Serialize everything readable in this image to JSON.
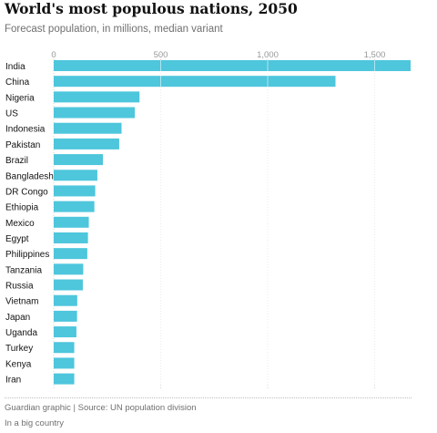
{
  "title": "World's most populous nations, 2050",
  "subtitle": "Forecast population, in millions, median variant",
  "source": "Guardian graphic | Source: UN population division",
  "note": "In a big country",
  "colors": {
    "bar": "#4ec6dc",
    "text": "#121212",
    "muted": "#707070",
    "grid": "#d6d6d6",
    "tick": "#9a9a9a"
  },
  "chart_data": {
    "type": "bar",
    "orientation": "horizontal",
    "categories": [
      "India",
      "China",
      "Nigeria",
      "US",
      "Indonesia",
      "Pakistan",
      "Brazil",
      "Bangladesh",
      "DR Congo",
      "Ethiopia",
      "Mexico",
      "Egypt",
      "Philippines",
      "Tanzania",
      "Russia",
      "Vietnam",
      "Japan",
      "Uganda",
      "Turkey",
      "Kenya",
      "Iran"
    ],
    "values": [
      1668,
      1317,
      401,
      379,
      317,
      306,
      230,
      204,
      194,
      190,
      164,
      160,
      157,
      138,
      136,
      110,
      109,
      106,
      96,
      96,
      96
    ],
    "xticks": [
      0,
      500,
      1000,
      1500
    ],
    "xtick_labels": [
      "0",
      "500",
      "1,000",
      "1,500"
    ],
    "xlim": [
      0,
      1668
    ],
    "grid": true,
    "xlabel": "",
    "ylabel": ""
  }
}
